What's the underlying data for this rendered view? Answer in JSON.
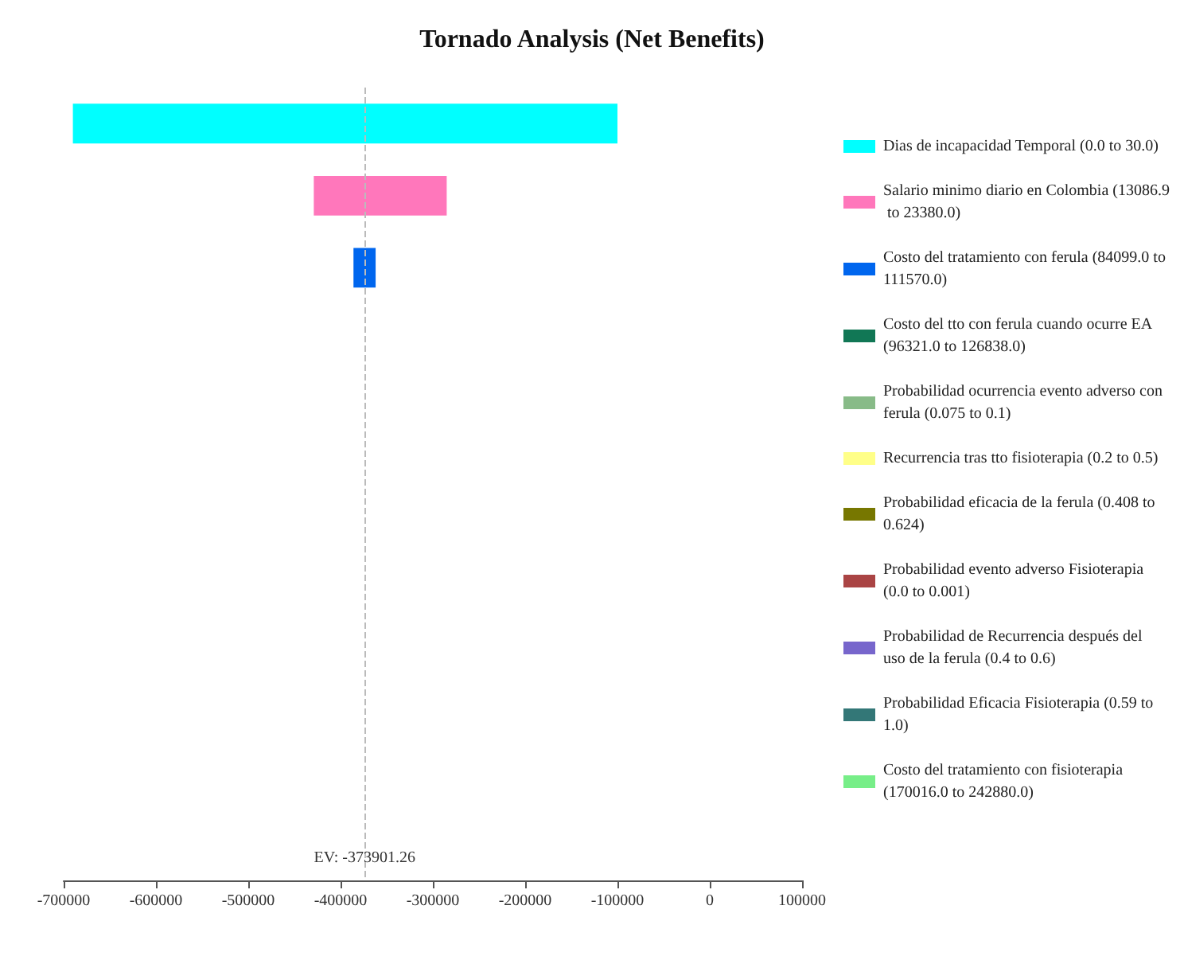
{
  "chart_data": {
    "type": "bar",
    "orientation": "horizontal",
    "title": "Tornado Analysis (Net Benefits)",
    "categories": [
      null,
      null,
      null,
      null,
      null,
      null,
      null,
      null,
      null,
      null,
      null
    ],
    "series": [
      {
        "name": "Dias de incapacidad Temporal (0.0 to 30.0)",
        "color": "#00ffff",
        "base": [
          -690000,
          null,
          null,
          null,
          null,
          null,
          null,
          null,
          null,
          null,
          null
        ],
        "values": [
          590000,
          null,
          null,
          null,
          null,
          null,
          null,
          null,
          null,
          null,
          null
        ]
      },
      {
        "name": "Salario minimo diario en Colombia (13086.9 to 23380.0)",
        "color": "#ff77bb",
        "base": [
          null,
          -429000,
          null,
          null,
          null,
          null,
          null,
          null,
          null,
          null,
          null
        ],
        "values": [
          null,
          144000,
          null,
          null,
          null,
          null,
          null,
          null,
          null,
          null,
          null
        ]
      },
      {
        "name": "Costo del tratamiento con ferula (84099.0 to 111570.0)",
        "color": "#0066ee",
        "base": [
          null,
          null,
          -386000,
          null,
          null,
          null,
          null,
          null,
          null,
          null,
          null
        ],
        "values": [
          null,
          null,
          24000,
          null,
          null,
          null,
          null,
          null,
          null,
          null,
          null
        ]
      },
      {
        "name": "Costo del tto con ferula cuando ocurre EA (96321.0 to 126838.0)",
        "color": "#117755",
        "values": [
          null,
          null,
          null,
          null,
          null,
          null,
          null,
          null,
          null,
          null,
          null
        ]
      },
      {
        "name": "Probabilidad ocurrencia evento adverso con ferula (0.075 to 0.1)",
        "color": "#88bb88",
        "values": [
          null,
          null,
          null,
          null,
          null,
          null,
          null,
          null,
          null,
          null,
          null
        ]
      },
      {
        "name": "Recurrencia tras tto fisioterapia (0.2 to 0.5)",
        "color": "#ffff88",
        "values": [
          null,
          null,
          null,
          null,
          null,
          null,
          null,
          null,
          null,
          null,
          null
        ]
      },
      {
        "name": "Probabilidad eficacia de la ferula (0.408 to 0.624)",
        "color": "#777700",
        "values": [
          null,
          null,
          null,
          null,
          null,
          null,
          null,
          null,
          null,
          null,
          null
        ]
      },
      {
        "name": "Probabilidad evento adverso Fisioterapia (0.0 to 0.001)",
        "color": "#aa4444",
        "values": [
          null,
          null,
          null,
          null,
          null,
          null,
          null,
          null,
          null,
          null,
          null
        ]
      },
      {
        "name": "Probabilidad de Recurrencia después del uso de la ferula (0.4 to 0.6)",
        "color": "#7766cc",
        "values": [
          null,
          null,
          null,
          null,
          null,
          null,
          null,
          null,
          null,
          null,
          null
        ]
      },
      {
        "name": "Probabilidad Eficacia Fisioterapia (0.59 to 1.0)",
        "color": "#337777",
        "values": [
          null,
          null,
          null,
          null,
          null,
          null,
          null,
          null,
          null,
          null,
          null
        ]
      },
      {
        "name": "Costo del tratamiento con fisioterapia (170016.0 to 242880.0)",
        "color": "#77ee88",
        "values": [
          null,
          null,
          null,
          null,
          null,
          null,
          null,
          null,
          null,
          null,
          null
        ]
      }
    ],
    "xlim": [
      -700000,
      100000
    ],
    "xticks": [
      -700000,
      -600000,
      -500000,
      -400000,
      -300000,
      -200000,
      -100000,
      0,
      100000
    ],
    "ref_lines": [
      {
        "axis": "x",
        "value": -373901.26,
        "label": "EV: -373901.26",
        "color": "#bbbbbb",
        "line_style": "dashed"
      }
    ],
    "legend": "right",
    "tick_labels": "x",
    "grid": false
  }
}
